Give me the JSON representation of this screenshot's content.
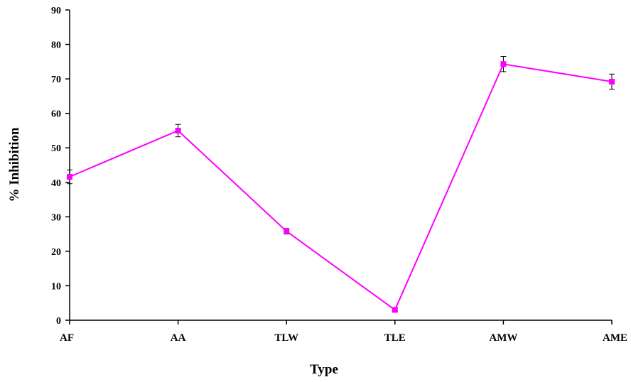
{
  "chart_data": {
    "type": "line",
    "xlabel": "Type",
    "ylabel": "% Inhibition",
    "categories": [
      "AF",
      "AA",
      "TLW",
      "TLE",
      "AMW",
      "AME"
    ],
    "series": [
      {
        "values": [
          41.6,
          55.0,
          25.8,
          3.0,
          74.3,
          69.2
        ],
        "errors": [
          2.0,
          1.8,
          0.8,
          0.5,
          2.2,
          2.2
        ],
        "color": "#ff00ff"
      }
    ],
    "ylim": [
      0,
      90
    ],
    "yticks": [
      0,
      10,
      20,
      30,
      40,
      50,
      60,
      70,
      80,
      90
    ],
    "grid": false,
    "marker": "square"
  }
}
